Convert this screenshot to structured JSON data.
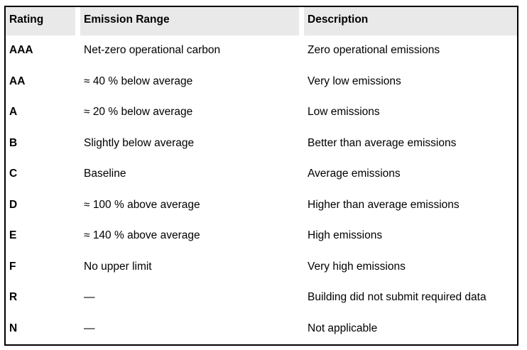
{
  "table": {
    "columns": [
      {
        "label": "Rating"
      },
      {
        "label": "Emission Range"
      },
      {
        "label": "Description"
      }
    ],
    "rows": [
      {
        "rating": "AAA",
        "range": "Net-zero operational carbon",
        "description": "Zero operational emissions"
      },
      {
        "rating": "AA",
        "range": "≈ 40 % below average",
        "description": "Very low emissions"
      },
      {
        "rating": "A",
        "range": "≈ 20 % below average",
        "description": "Low emissions"
      },
      {
        "rating": "B",
        "range": "Slightly below average",
        "description": "Better than average emissions"
      },
      {
        "rating": "C",
        "range": "Baseline",
        "description": "Average emissions"
      },
      {
        "rating": "D",
        "range": "≈ 100 % above average",
        "description": "Higher than average emissions"
      },
      {
        "rating": "E",
        "range": "≈ 140 % above average",
        "description": "High emissions"
      },
      {
        "rating": "F",
        "range": "No upper limit",
        "description": "Very high emissions"
      },
      {
        "rating": "R",
        "range": "—",
        "description": "Building did not submit required data"
      },
      {
        "rating": "N",
        "range": "—",
        "description": "Not applicable"
      }
    ],
    "colors": {
      "header_bg": "#e9e9e9",
      "border": "#000000",
      "text": "#000000"
    }
  }
}
